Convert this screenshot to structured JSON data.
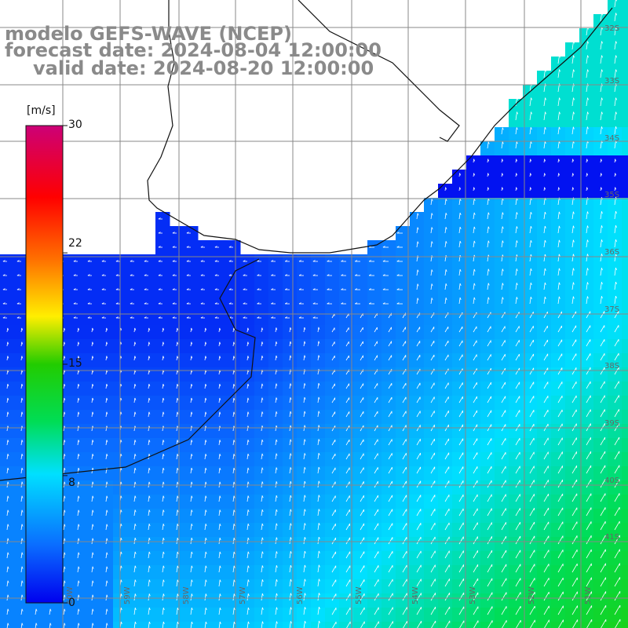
{
  "title": {
    "model": "modelo GEFS-WAVE (NCEP)",
    "forecast": "forecast date: 2024-08-04 12:00:00",
    "valid": "valid date: 2024-08-20 12:00:00"
  },
  "colorbar": {
    "unit": "[m/s]",
    "ticks": [
      "30",
      "22",
      "15",
      "8",
      "0"
    ],
    "tick_values": [
      30,
      22,
      15,
      8,
      0
    ],
    "range": [
      0,
      30
    ],
    "colors": [
      "#0000ee",
      "#0a6cff",
      "#00e0ff",
      "#00dd55",
      "#22cc00",
      "#ffee00",
      "#ff7000",
      "#ff0000",
      "#cc0077"
    ]
  },
  "axes": {
    "lat_labels": [
      "32S",
      "33S",
      "34S",
      "35S",
      "36S",
      "37S",
      "38S",
      "39S",
      "40S",
      "41S"
    ],
    "lon_labels": [
      "60W",
      "59W",
      "58W",
      "57W",
      "56W",
      "55W",
      "54W",
      "53W",
      "52W",
      "51W"
    ]
  },
  "colors": {
    "land": "#ffffff",
    "grid": "#888888",
    "coast": "#111111",
    "arrow": "#ffffff",
    "title": "#8a8a8a"
  }
}
